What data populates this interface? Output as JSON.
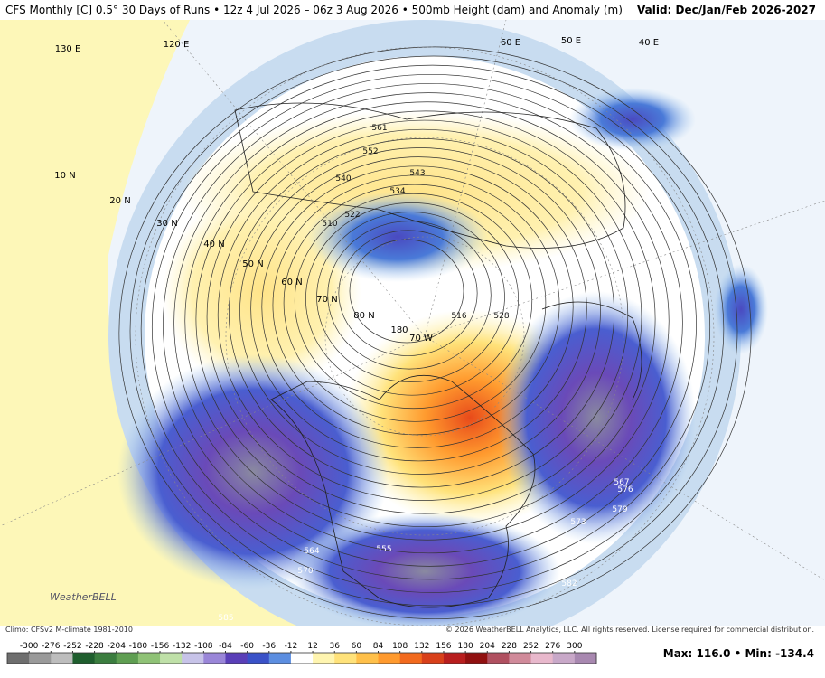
{
  "header": {
    "title": "CFS Monthly [C] 0.5° 30 Days of Runs • 12z 4 Jul 2026 – 06z 3 Aug 2026 • 500mb Height (dam) and Anomaly (m)",
    "valid": "Valid: Dec/Jan/Feb 2026-2027"
  },
  "map": {
    "latitude_labels": [
      "10 N",
      "20 N",
      "30 N",
      "40 N",
      "50 N",
      "60 N",
      "70 N",
      "80 N"
    ],
    "longitude_labels": [
      "180",
      "70 W",
      "130 E",
      "120 E",
      "60 E",
      "50 E",
      "40 E"
    ],
    "contour_labels": [
      "561",
      "552",
      "540",
      "543",
      "534",
      "522",
      "510",
      "516",
      "528",
      "567",
      "576",
      "573",
      "579",
      "582",
      "564",
      "570",
      "585",
      "555"
    ],
    "logo": "WeatherBELL"
  },
  "footer": {
    "climo": "Climo: CFSv2 M-climate 1981-2010",
    "copyright": "© 2026 WeatherBELL Analytics, LLC. All rights reserved. License required for commercial distribution.",
    "stats": "Max: 116.0 • Min: -134.4"
  },
  "colorbar": {
    "ticks": [
      -300,
      -276,
      -252,
      -228,
      -204,
      -180,
      -156,
      -132,
      -108,
      -84,
      -60,
      -36,
      -12,
      12,
      36,
      60,
      84,
      108,
      132,
      156,
      180,
      204,
      228,
      252,
      276,
      300
    ],
    "colors": [
      "#6e6e6e",
      "#9a9a9a",
      "#bdbdbd",
      "#1f5e2e",
      "#3b7d3f",
      "#5f9e52",
      "#8fc276",
      "#bfe0a8",
      "#c7c3e8",
      "#9a86d8",
      "#5a3fb8",
      "#3a52c8",
      "#5c8ee0",
      "#ffffff",
      "#fff5b0",
      "#ffe27a",
      "#ffc04a",
      "#ff9a2e",
      "#f26a1e",
      "#d8401a",
      "#b81e1e",
      "#901010",
      "#b05060",
      "#d08a9a",
      "#e8b8cc",
      "#c8a8c8",
      "#a888b0"
    ]
  }
}
